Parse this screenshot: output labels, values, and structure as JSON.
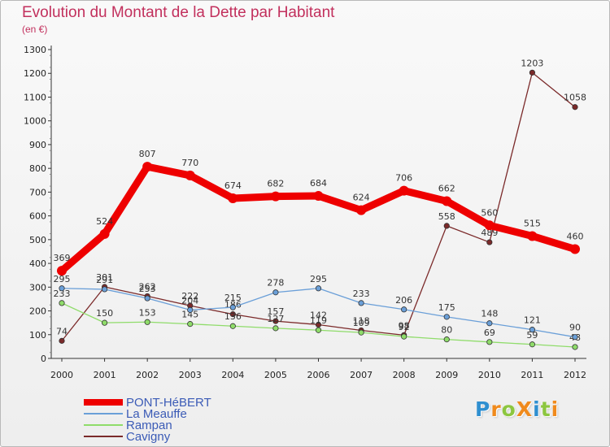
{
  "title": "Evolution du Montant de la Dette par Habitant",
  "subtitle": "(en €)",
  "logo": {
    "text": "ProXiti",
    "letters": [
      "P",
      "r",
      "o",
      "X",
      "i",
      "t",
      "i"
    ],
    "colors": [
      "#2f8fd0",
      "#f08a1c",
      "#8cc63f",
      "#f08a1c",
      "#2f8fd0",
      "#8cc63f",
      "#f08a1c"
    ]
  },
  "chart_data": {
    "type": "line",
    "categories": [
      "2000",
      "2001",
      "2002",
      "2003",
      "2004",
      "2005",
      "2006",
      "2007",
      "2008",
      "2009",
      "2010",
      "2011",
      "2012"
    ],
    "ylim": [
      0,
      1300
    ],
    "yticks": [
      0,
      100,
      200,
      300,
      400,
      500,
      600,
      700,
      800,
      900,
      1000,
      1100,
      1200,
      1300
    ],
    "grid": false,
    "legend_position": "bottom-left",
    "series": [
      {
        "name": "Cavigny",
        "color": "#7b2a2a",
        "values": [
          74,
          301,
          262,
          222,
          186,
          157,
          142,
          118,
          98,
          558,
          489,
          1203,
          1058
        ]
      },
      {
        "name": "Rampan",
        "color": "#8fdc6a",
        "values": [
          233,
          150,
          153,
          145,
          136,
          127,
          119,
          109,
          92,
          80,
          69,
          59,
          48
        ]
      },
      {
        "name": "La Meauffe",
        "color": "#6a9fd8",
        "values": [
          295,
          291,
          253,
          204,
          215,
          278,
          295,
          233,
          206,
          175,
          148,
          121,
          90
        ]
      },
      {
        "name": "PONT-HéBERT",
        "color": "#ee0000",
        "values": [
          369,
          524,
          807,
          770,
          674,
          682,
          684,
          624,
          706,
          662,
          560,
          515,
          460
        ]
      }
    ]
  }
}
